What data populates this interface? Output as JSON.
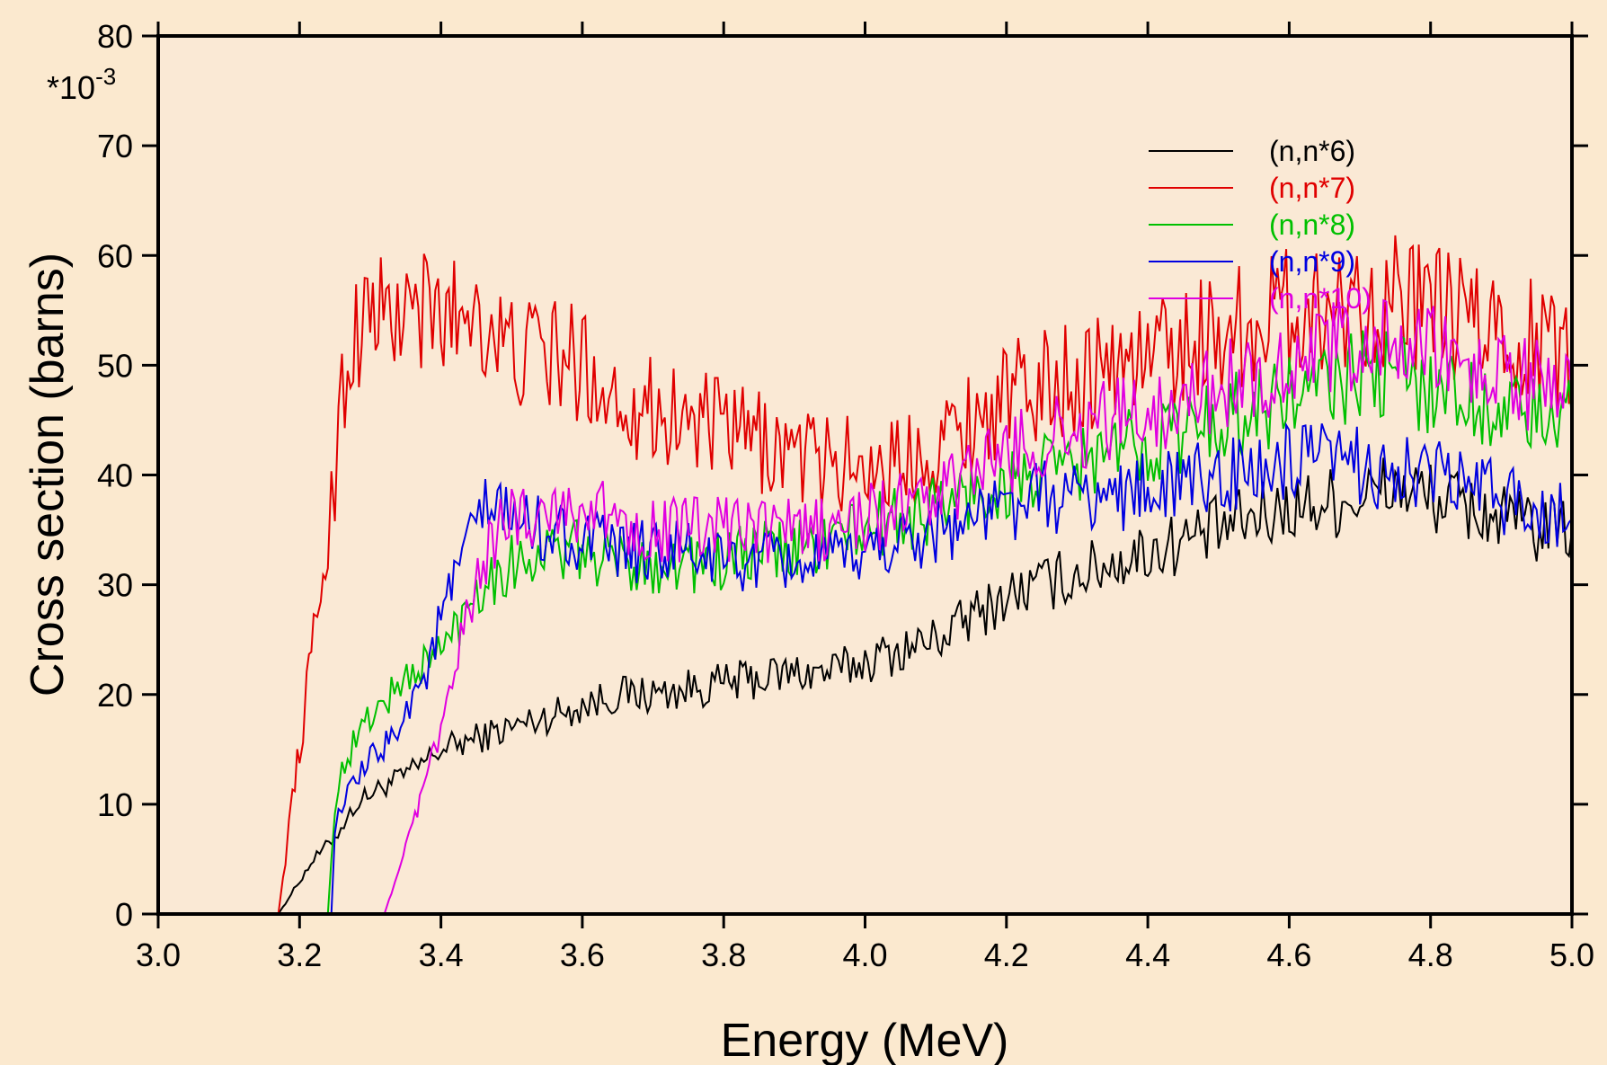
{
  "chart_data": {
    "type": "line",
    "title": "",
    "xlabel": "Energy (MeV)",
    "ylabel": "Cross section (barns)",
    "y_multiplier_label": "*10",
    "y_multiplier_exponent": "-3",
    "xlim": [
      3.0,
      5.0
    ],
    "ylim": [
      0,
      80
    ],
    "xticks": [
      3.0,
      3.2,
      3.4,
      3.6,
      3.8,
      4.0,
      4.2,
      4.4,
      4.6,
      4.8,
      5.0
    ],
    "xtick_labels": [
      "3.0",
      "3.2",
      "3.4",
      "3.6",
      "3.8",
      "4.0",
      "4.2",
      "4.4",
      "4.6",
      "4.8",
      "5.0"
    ],
    "yticks": [
      0,
      10,
      20,
      30,
      40,
      50,
      60,
      70,
      80
    ],
    "ytick_labels": [
      "0",
      "10",
      "20",
      "30",
      "40",
      "50",
      "60",
      "70",
      "80"
    ],
    "grid": false,
    "legend_position": "top-right",
    "plot_background": "#fae9d5",
    "page_background": "#fbe9cf",
    "series": [
      {
        "name": "(n,n*6)",
        "color": "#000000",
        "x": [
          3.17,
          3.18,
          3.2,
          3.22,
          3.25,
          3.28,
          3.3,
          3.33,
          3.36,
          3.4,
          3.45,
          3.5,
          3.55,
          3.6,
          3.65,
          3.7,
          3.75,
          3.8,
          3.85,
          3.9,
          3.95,
          4.0,
          4.05,
          4.1,
          4.15,
          4.2,
          4.25,
          4.3,
          4.35,
          4.4,
          4.45,
          4.5,
          4.55,
          4.6,
          4.65,
          4.7,
          4.75,
          4.8,
          4.85,
          4.9,
          4.95,
          5.0
        ],
        "y": [
          0,
          1,
          3,
          5,
          7,
          10,
          11,
          12,
          13,
          15,
          16,
          17,
          18,
          19,
          20,
          20,
          20.5,
          21,
          21.5,
          22,
          22,
          23,
          24,
          25,
          27,
          29,
          30,
          31,
          32,
          33,
          34,
          35,
          36,
          37,
          37.5,
          38,
          39,
          38,
          37,
          36,
          35,
          35
        ]
      },
      {
        "name": "(n,n*7)",
        "color": "#e00000",
        "x": [
          3.17,
          3.18,
          3.19,
          3.2,
          3.21,
          3.22,
          3.23,
          3.24,
          3.25,
          3.26,
          3.28,
          3.3,
          3.33,
          3.36,
          3.4,
          3.43,
          3.45,
          3.48,
          3.5,
          3.55,
          3.6,
          3.65,
          3.7,
          3.75,
          3.8,
          3.85,
          3.9,
          3.95,
          4.0,
          4.05,
          4.1,
          4.15,
          4.2,
          4.25,
          4.3,
          4.35,
          4.4,
          4.45,
          4.5,
          4.55,
          4.6,
          4.65,
          4.7,
          4.75,
          4.8,
          4.85,
          4.9,
          4.95,
          5.0
        ],
        "y": [
          0,
          5,
          11,
          15,
          20,
          25,
          30,
          34,
          40,
          48,
          53,
          55,
          54,
          55,
          54,
          55,
          56,
          52,
          51,
          51,
          50,
          47,
          46,
          45,
          44,
          43,
          42,
          41,
          41,
          41,
          43,
          45,
          47,
          48,
          49,
          50,
          51,
          52,
          53,
          54,
          55,
          55,
          56,
          56,
          55,
          54,
          53,
          52,
          51
        ]
      },
      {
        "name": "(n,n*8)",
        "color": "#00c000",
        "x": [
          3.24,
          3.25,
          3.26,
          3.28,
          3.3,
          3.33,
          3.36,
          3.4,
          3.43,
          3.45,
          3.48,
          3.5,
          3.55,
          3.6,
          3.65,
          3.7,
          3.75,
          3.8,
          3.85,
          3.9,
          3.95,
          4.0,
          4.05,
          4.1,
          4.15,
          4.2,
          4.25,
          4.3,
          4.35,
          4.4,
          4.45,
          4.5,
          4.55,
          4.6,
          4.65,
          4.7,
          4.75,
          4.8,
          4.85,
          4.9,
          4.95,
          5.0
        ],
        "y": [
          0,
          10,
          13,
          16,
          18,
          20,
          22,
          24,
          27,
          30,
          31,
          32,
          33,
          33,
          32,
          32,
          32,
          32,
          33,
          33,
          34,
          35,
          36,
          37,
          38,
          39,
          40,
          41,
          42,
          43,
          44,
          45,
          46,
          47,
          48,
          49,
          49,
          48,
          47,
          46,
          45,
          45
        ]
      },
      {
        "name": "(n,n*9)",
        "color": "#0000e0",
        "x": [
          3.245,
          3.25,
          3.26,
          3.28,
          3.3,
          3.33,
          3.36,
          3.38,
          3.4,
          3.43,
          3.45,
          3.48,
          3.5,
          3.55,
          3.6,
          3.65,
          3.7,
          3.75,
          3.8,
          3.85,
          3.9,
          3.95,
          4.0,
          4.05,
          4.1,
          4.15,
          4.2,
          4.25,
          4.3,
          4.35,
          4.4,
          4.45,
          4.5,
          4.55,
          4.6,
          4.65,
          4.7,
          4.75,
          4.8,
          4.85,
          4.9,
          4.95,
          5.0
        ],
        "y": [
          0,
          8,
          10,
          12,
          14,
          16,
          20,
          22,
          27,
          32,
          36,
          37,
          36,
          35,
          34,
          33,
          33,
          33,
          32,
          32,
          32,
          32,
          33,
          34,
          35,
          36,
          37,
          38,
          38,
          38,
          39,
          39,
          40,
          40,
          41,
          41,
          41,
          40,
          40,
          39,
          38,
          37,
          36
        ]
      },
      {
        "name": "(n,n*10)",
        "color": "#e000e0",
        "x": [
          3.32,
          3.33,
          3.34,
          3.35,
          3.36,
          3.37,
          3.38,
          3.39,
          3.4,
          3.42,
          3.44,
          3.46,
          3.48,
          3.5,
          3.55,
          3.6,
          3.65,
          3.7,
          3.75,
          3.8,
          3.85,
          3.9,
          3.95,
          4.0,
          4.05,
          4.1,
          4.15,
          4.2,
          4.25,
          4.3,
          4.35,
          4.4,
          4.45,
          4.5,
          4.55,
          4.6,
          4.65,
          4.7,
          4.75,
          4.8,
          4.85,
          4.9,
          4.95,
          5.0
        ],
        "y": [
          0,
          2,
          4,
          6,
          8,
          10,
          12,
          15,
          17,
          22,
          28,
          32,
          35,
          36,
          37,
          37,
          36,
          35,
          35,
          35,
          35,
          35,
          35,
          36,
          37,
          38,
          40,
          42,
          43,
          44,
          45,
          46,
          47,
          48,
          49,
          50,
          51,
          52,
          52,
          51,
          50,
          49,
          48,
          47
        ]
      }
    ]
  }
}
